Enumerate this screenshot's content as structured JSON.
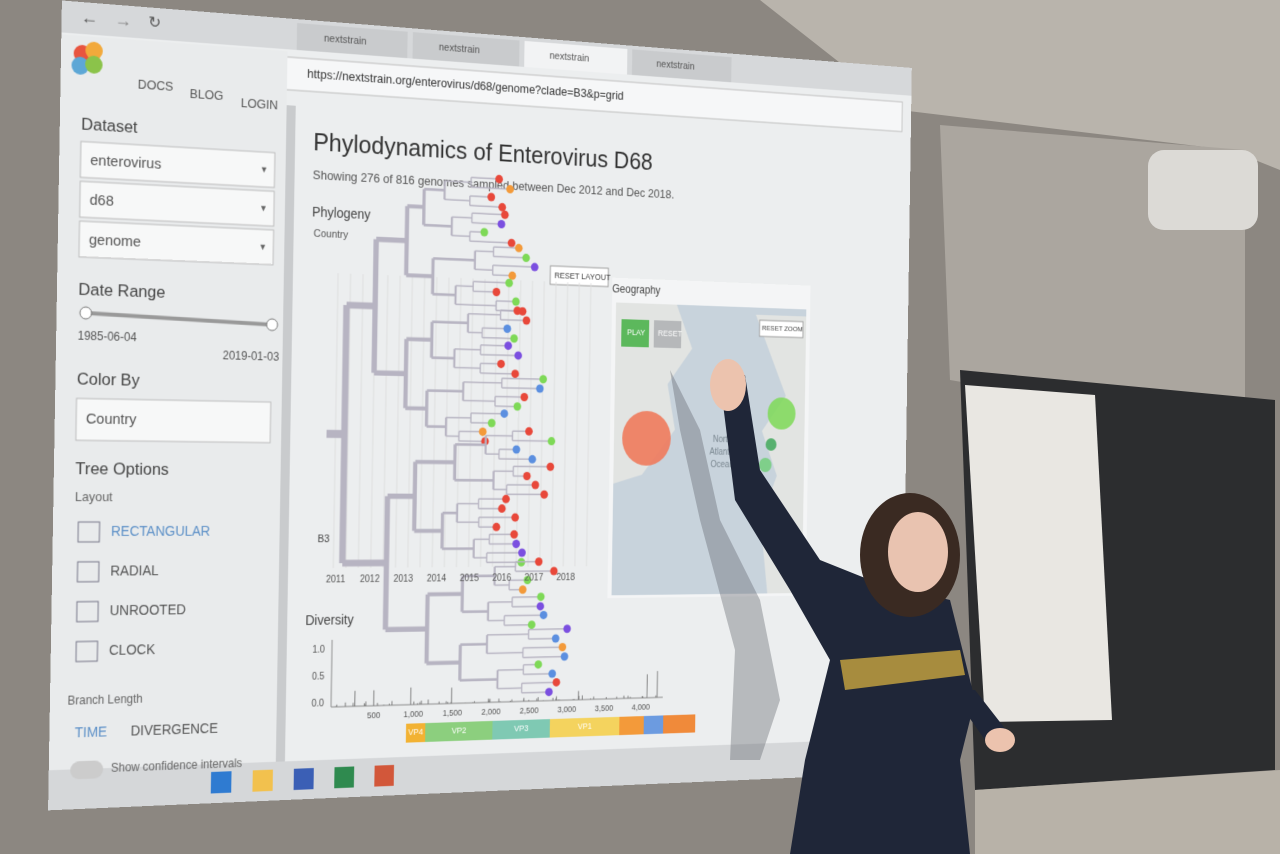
{
  "browser": {
    "tabs": [
      "nextstrain",
      "nextstrain",
      "nextstrain",
      "nextstrain"
    ],
    "url": "https://nextstrain.org/enterovirus/d68/genome?clade=B3&p=grid"
  },
  "nav": [
    "DOCS",
    "BLOG",
    "LOGIN"
  ],
  "sidebar": {
    "dataset_label": "Dataset",
    "dataset": [
      "enterovirus",
      "d68",
      "genome"
    ],
    "date_range_label": "Date Range",
    "date_start": "1985-06-04",
    "date_end": "2019-01-03",
    "color_by_label": "Color By",
    "color_by": "Country",
    "tree_options_label": "Tree Options",
    "layout_label": "Layout",
    "layouts": [
      "RECTANGULAR",
      "RADIAL",
      "UNROOTED",
      "CLOCK"
    ],
    "branch_length_label": "Branch Length",
    "branch_lengths": [
      "TIME",
      "DIVERGENCE"
    ],
    "confidence": "Show confidence intervals"
  },
  "main": {
    "title": "Phylodynamics of Enterovirus D68",
    "subtitle": "Showing 276 of 816 genomes sampled between Dec 2012 and Dec 2018.",
    "phylogeny": {
      "title": "Phylogeny",
      "color_label": "Country",
      "reset": "RESET LAYOUT",
      "clade": "B3",
      "x_ticks": [
        "2011",
        "2012",
        "2013",
        "2014",
        "2015",
        "2016",
        "2017",
        "2018"
      ]
    },
    "geography": {
      "title": "Geography",
      "play": "PLAY",
      "reset": "RESET",
      "reset_zoom": "RESET ZOOM",
      "ocean": [
        "North",
        "Atlantic",
        "Ocean"
      ]
    },
    "diversity": {
      "title": "Diversity",
      "y_ticks": [
        "1.0",
        "0.5",
        "0.0"
      ],
      "x_ticks": [
        "500",
        "1,000",
        "1,500",
        "2,000",
        "2,500",
        "3,000",
        "3,500",
        "4,000"
      ],
      "genes": [
        "VP4",
        "VP2",
        "VP3",
        "VP1"
      ]
    }
  }
}
